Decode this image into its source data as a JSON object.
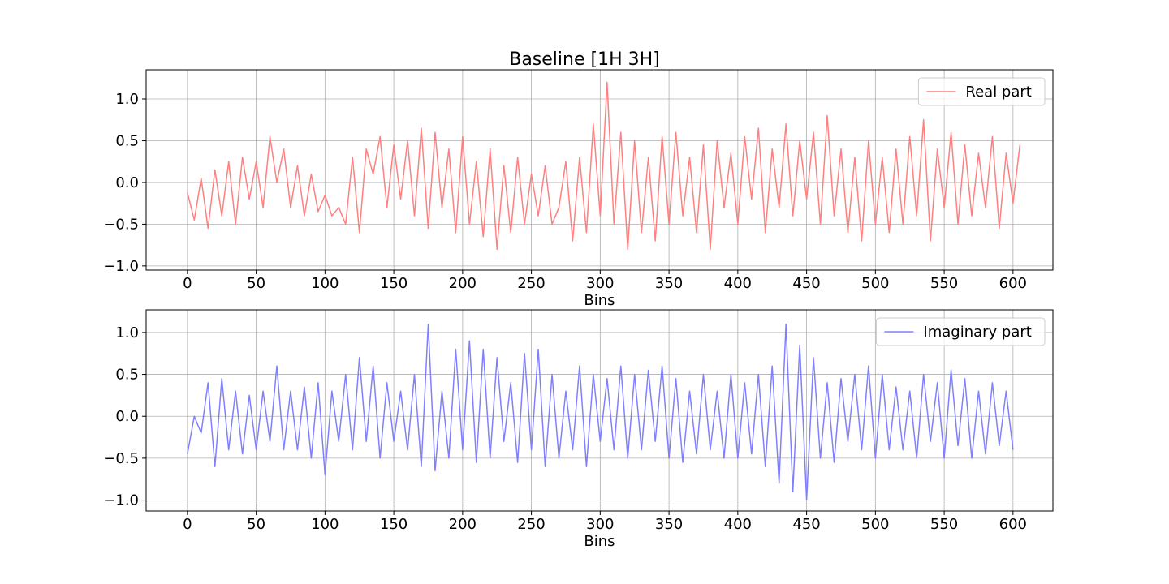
{
  "chart_data": [
    {
      "type": "line",
      "title": "Baseline [1H 3H]",
      "xlabel": "Bins",
      "ylabel": "",
      "xlim": [
        -30,
        629
      ],
      "ylim": [
        -1.05,
        1.35
      ],
      "xticks": [
        0,
        50,
        100,
        150,
        200,
        250,
        300,
        350,
        400,
        450,
        500,
        550,
        600
      ],
      "yticks": [
        -1.0,
        -0.5,
        0.0,
        0.5,
        1.0
      ],
      "grid": true,
      "legend_position": "top-right",
      "series": [
        {
          "name": "Real part",
          "color": "#ff8080",
          "x_start": 0,
          "x_step": 5,
          "values": [
            -0.12,
            -0.45,
            0.05,
            -0.55,
            0.15,
            -0.4,
            0.25,
            -0.5,
            0.3,
            -0.2,
            0.25,
            -0.3,
            0.55,
            0.0,
            0.4,
            -0.3,
            0.2,
            -0.4,
            0.1,
            -0.35,
            -0.15,
            -0.4,
            -0.3,
            -0.5,
            0.3,
            -0.6,
            0.4,
            0.1,
            0.55,
            -0.3,
            0.45,
            -0.2,
            0.5,
            -0.4,
            0.65,
            -0.55,
            0.6,
            -0.3,
            0.4,
            -0.6,
            0.55,
            -0.5,
            0.25,
            -0.65,
            0.4,
            -0.8,
            0.2,
            -0.6,
            0.3,
            -0.5,
            0.1,
            -0.4,
            0.2,
            -0.5,
            -0.3,
            0.25,
            -0.7,
            0.3,
            -0.6,
            0.7,
            -0.4,
            1.2,
            -0.5,
            0.6,
            -0.8,
            0.5,
            -0.6,
            0.3,
            -0.7,
            0.55,
            -0.5,
            0.6,
            -0.4,
            0.3,
            -0.6,
            0.45,
            -0.8,
            0.5,
            -0.3,
            0.35,
            -0.5,
            0.55,
            -0.2,
            0.65,
            -0.6,
            0.4,
            -0.3,
            0.7,
            -0.4,
            0.5,
            -0.2,
            0.6,
            -0.5,
            0.8,
            -0.4,
            0.4,
            -0.6,
            0.3,
            -0.7,
            0.5,
            -0.5,
            0.3,
            -0.6,
            0.4,
            -0.5,
            0.55,
            -0.4,
            0.75,
            -0.7,
            0.4,
            -0.3,
            0.6,
            -0.5,
            0.45,
            -0.4,
            0.35,
            -0.3,
            0.55,
            -0.55,
            0.35,
            -0.25,
            0.45
          ]
        },
        {
          "name": "Imaginary part",
          "color": "#8080ff",
          "x_start": 0,
          "x_step": 5,
          "values": [
            -0.45,
            0.0,
            -0.2,
            0.4,
            -0.6,
            0.45,
            -0.4,
            0.3,
            -0.45,
            0.25,
            -0.4,
            0.3,
            -0.3,
            0.6,
            -0.4,
            0.3,
            -0.4,
            0.35,
            -0.5,
            0.4,
            -0.7,
            0.3,
            -0.3,
            0.5,
            -0.4,
            0.7,
            -0.3,
            0.6,
            -0.5,
            0.4,
            -0.3,
            0.3,
            -0.4,
            0.5,
            -0.6,
            1.1,
            -0.65,
            0.3,
            -0.5,
            0.8,
            -0.4,
            0.9,
            -0.55,
            0.8,
            -0.5,
            0.7,
            -0.3,
            0.4,
            -0.55,
            0.75,
            -0.4,
            0.8,
            -0.6,
            0.5,
            -0.5,
            0.3,
            -0.4,
            0.6,
            -0.6,
            0.5,
            -0.3,
            0.45,
            -0.4,
            0.6,
            -0.5,
            0.5,
            -0.4,
            0.55,
            -0.3,
            0.6,
            -0.5,
            0.45,
            -0.55,
            0.3,
            -0.45,
            0.5,
            -0.4,
            0.3,
            -0.5,
            0.5,
            -0.5,
            0.4,
            -0.45,
            0.5,
            -0.6,
            0.6,
            -0.8,
            1.1,
            -0.9,
            0.85,
            -1.0,
            0.7,
            -0.5,
            0.4,
            -0.55,
            0.45,
            -0.3,
            0.5,
            -0.4,
            0.6,
            -0.5,
            0.5,
            -0.4,
            0.35,
            -0.4,
            0.3,
            -0.5,
            0.5,
            -0.3,
            0.4,
            -0.5,
            0.55,
            -0.35,
            0.45,
            -0.5,
            0.3,
            -0.45,
            0.4,
            -0.35,
            0.3,
            -0.4
          ]
        }
      ]
    },
    {
      "type": "line",
      "xlabel": "Bins",
      "ylabel": "",
      "xlim": [
        -30,
        629
      ],
      "ylim": [
        -1.13,
        1.27
      ],
      "xticks": [
        0,
        50,
        100,
        150,
        200,
        250,
        300,
        350,
        400,
        450,
        500,
        550,
        600
      ],
      "yticks": [
        -1.0,
        -0.5,
        0.0,
        0.5,
        1.0
      ],
      "grid": true,
      "legend_position": "top-right",
      "series": [
        {
          "name": "Imaginary part",
          "color": "#8080ff",
          "x_start": 0,
          "x_step": 5,
          "values": [
            -0.45,
            0.0,
            -0.2,
            0.4,
            -0.6,
            0.45,
            -0.4,
            0.3,
            -0.45,
            0.25,
            -0.4,
            0.3,
            -0.3,
            0.6,
            -0.4,
            0.3,
            -0.4,
            0.35,
            -0.5,
            0.4,
            -0.7,
            0.3,
            -0.3,
            0.5,
            -0.4,
            0.7,
            -0.3,
            0.6,
            -0.5,
            0.4,
            -0.3,
            0.3,
            -0.4,
            0.5,
            -0.6,
            1.1,
            -0.65,
            0.3,
            -0.5,
            0.8,
            -0.4,
            0.9,
            -0.55,
            0.8,
            -0.5,
            0.7,
            -0.3,
            0.4,
            -0.55,
            0.75,
            -0.4,
            0.8,
            -0.6,
            0.5,
            -0.5,
            0.3,
            -0.4,
            0.6,
            -0.6,
            0.5,
            -0.3,
            0.45,
            -0.4,
            0.6,
            -0.5,
            0.5,
            -0.4,
            0.55,
            -0.3,
            0.6,
            -0.5,
            0.45,
            -0.55,
            0.3,
            -0.45,
            0.5,
            -0.4,
            0.3,
            -0.5,
            0.5,
            -0.5,
            0.4,
            -0.45,
            0.5,
            -0.6,
            0.6,
            -0.8,
            1.1,
            -0.9,
            0.85,
            -1.0,
            0.7,
            -0.5,
            0.4,
            -0.55,
            0.45,
            -0.3,
            0.5,
            -0.4,
            0.6,
            -0.5,
            0.5,
            -0.4,
            0.35,
            -0.4,
            0.3,
            -0.5,
            0.5,
            -0.3,
            0.4,
            -0.5,
            0.55,
            -0.35,
            0.45,
            -0.5,
            0.3,
            -0.45,
            0.4,
            -0.35,
            0.3,
            -0.4
          ]
        }
      ]
    }
  ]
}
